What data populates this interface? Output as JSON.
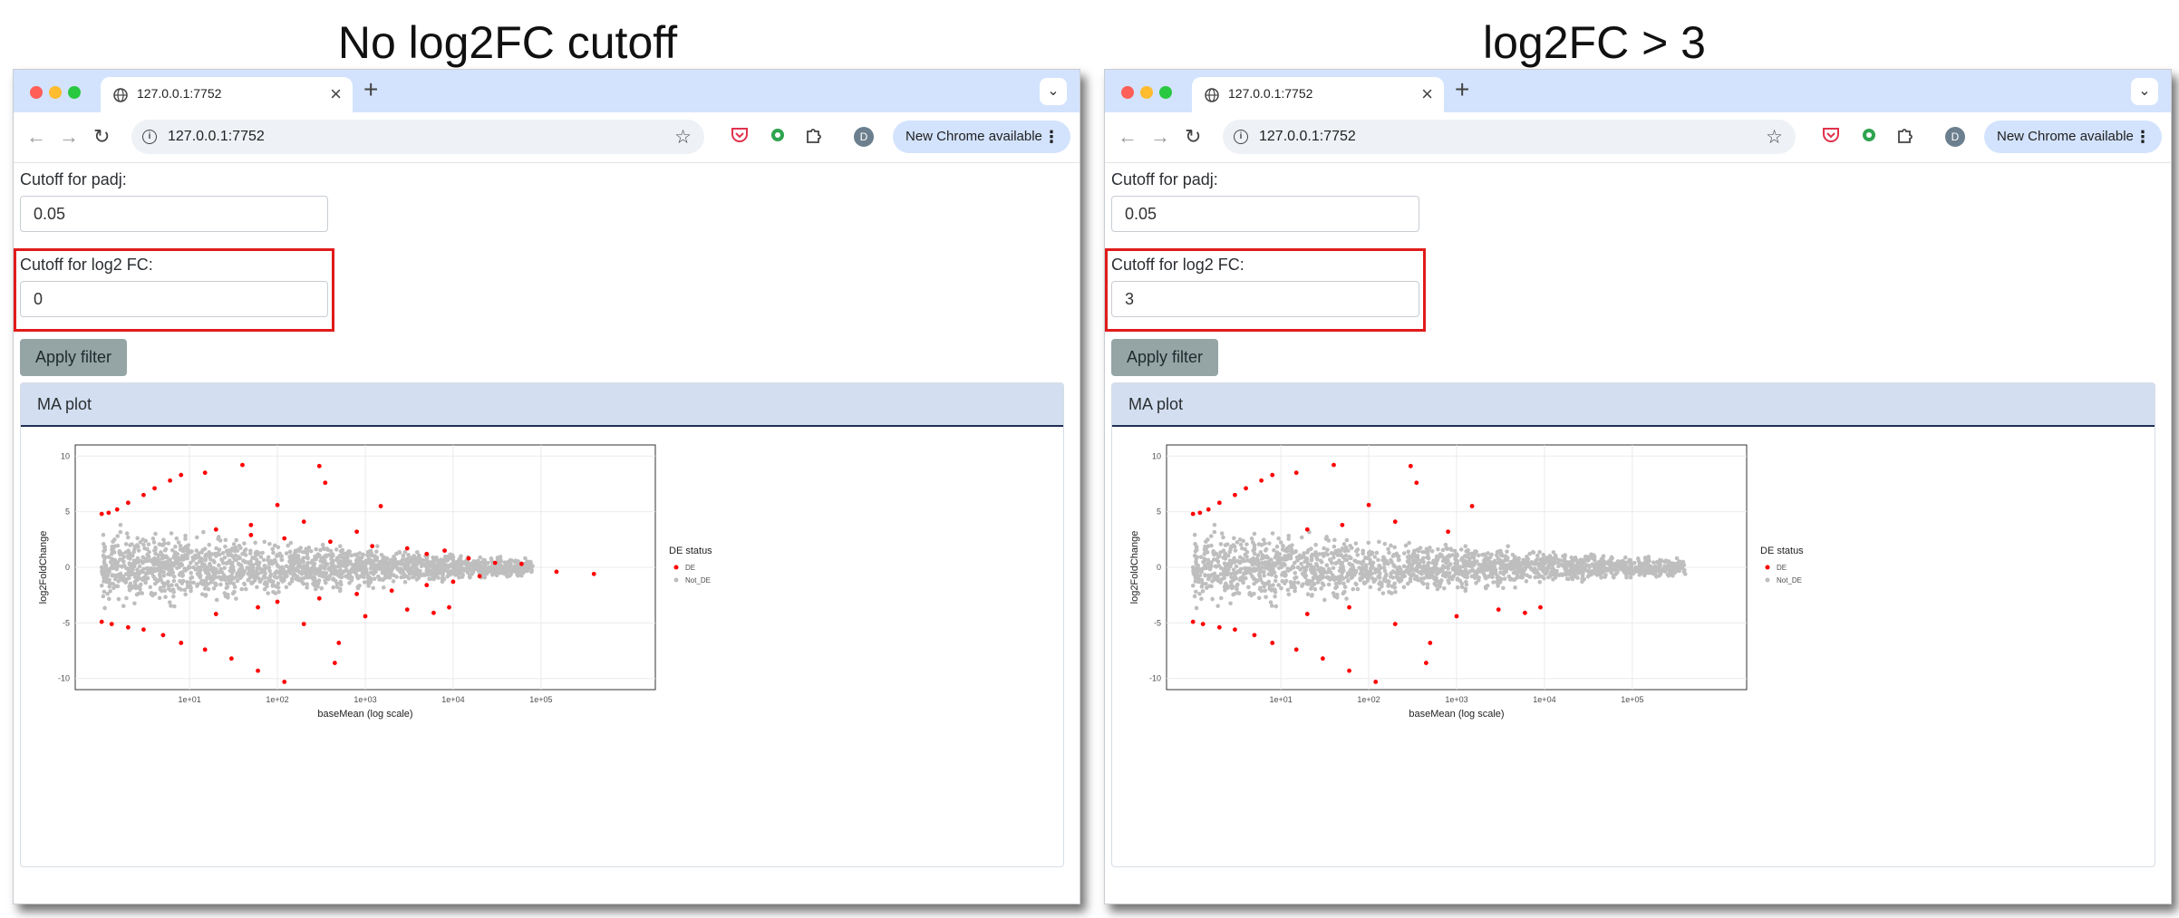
{
  "panels": [
    {
      "heading": "No log2FC cutoff",
      "tab_title": "127.0.0.1:7752",
      "url": "127.0.0.1:7752",
      "update_chip": "New Chrome available",
      "avatar_letter": "D",
      "padj_label": "Cutoff for padj:",
      "padj_value": "0.05",
      "lfc_label": "Cutoff for log2 FC:",
      "lfc_value": "0",
      "apply_label": "Apply filter",
      "card_title": "MA plot"
    },
    {
      "heading": "log2FC > 3",
      "tab_title": "127.0.0.1:7752",
      "url": "127.0.0.1:7752",
      "update_chip": "New Chrome available",
      "avatar_letter": "D",
      "padj_label": "Cutoff for padj:",
      "padj_value": "0.05",
      "lfc_label": "Cutoff for log2 FC:",
      "lfc_value": "3",
      "apply_label": "Apply filter",
      "card_title": "MA plot"
    }
  ],
  "colors": {
    "de": "#ff0000",
    "not_de": "#bebebe",
    "highlight_box": "#e11b1b",
    "tabbar": "#d3e3fd",
    "card_header": "#d3dff0",
    "apply_button": "#95a5a6"
  },
  "icons": [
    "back-arrow-icon",
    "forward-arrow-icon",
    "reload-icon",
    "info-icon",
    "star-icon",
    "pocket-icon",
    "extension-green-icon",
    "puzzle-icon",
    "globe-icon",
    "close-icon",
    "plus-icon",
    "chevron-down-icon",
    "more-vert-icon"
  ],
  "chart_data": [
    {
      "type": "scatter",
      "title": "",
      "xlabel": "baseMean (log scale)",
      "ylabel": "log2FoldChange",
      "x_scale": "log10",
      "xlim": [
        0.5,
        2000000
      ],
      "ylim": [
        -11,
        11
      ],
      "x_ticks": [
        "1e+01",
        "1e+02",
        "1e+03",
        "1e+04",
        "1e+05"
      ],
      "y_ticks": [
        "10",
        "5",
        "0",
        "-5",
        "-10"
      ],
      "grid": true,
      "legend_title": "DE status",
      "legend_position": "right",
      "series": [
        {
          "name": "DE",
          "color": "#ff0000",
          "points": [
            [
              1,
              4.8
            ],
            [
              1.2,
              4.9
            ],
            [
              1.5,
              5.2
            ],
            [
              2,
              5.8
            ],
            [
              3,
              6.5
            ],
            [
              4,
              7.1
            ],
            [
              6,
              7.8
            ],
            [
              8,
              8.3
            ],
            [
              15,
              8.5
            ],
            [
              40,
              9.2
            ],
            [
              300,
              9.1
            ],
            [
              350,
              7.6
            ],
            [
              100,
              5.6
            ],
            [
              1500,
              5.5
            ],
            [
              20,
              3.4
            ],
            [
              50,
              3.8
            ],
            [
              200,
              4.1
            ],
            [
              800,
              3.2
            ],
            [
              1,
              -4.9
            ],
            [
              1.3,
              -5.1
            ],
            [
              2,
              -5.4
            ],
            [
              3,
              -5.6
            ],
            [
              5,
              -6.1
            ],
            [
              8,
              -6.8
            ],
            [
              15,
              -7.4
            ],
            [
              30,
              -8.2
            ],
            [
              60,
              -9.3
            ],
            [
              120,
              -10.3
            ],
            [
              450,
              -8.6
            ],
            [
              500,
              -6.8
            ],
            [
              200,
              -5.1
            ],
            [
              1000,
              -4.4
            ],
            [
              3000,
              -3.8
            ],
            [
              6000,
              -4.1
            ],
            [
              9000,
              -3.6
            ],
            [
              20,
              -4.2
            ],
            [
              60,
              -3.6
            ],
            [
              5000,
              1.2
            ],
            [
              8000,
              1.5
            ],
            [
              15000,
              0.8
            ],
            [
              30000,
              0.4
            ],
            [
              60000,
              0.3
            ],
            [
              150000,
              -0.4
            ],
            [
              400000,
              -0.6
            ],
            [
              20000,
              -0.8
            ],
            [
              10000,
              -1.3
            ],
            [
              5000,
              -1.6
            ],
            [
              2000,
              -2.1
            ],
            [
              800,
              -2.4
            ],
            [
              300,
              -2.8
            ],
            [
              100,
              -3.1
            ],
            [
              50,
              2.9
            ],
            [
              120,
              2.6
            ],
            [
              400,
              2.3
            ],
            [
              1200,
              1.9
            ],
            [
              3000,
              1.7
            ]
          ]
        },
        {
          "name": "Not_DE",
          "color": "#bebebe",
          "points": [
            [
              1,
              0
            ],
            [
              2,
              1
            ],
            [
              3,
              -1
            ],
            [
              5,
              2
            ],
            [
              8,
              -2
            ],
            [
              12,
              1.5
            ],
            [
              20,
              -1.5
            ],
            [
              40,
              1.2
            ],
            [
              80,
              -1
            ],
            [
              150,
              0.8
            ],
            [
              300,
              -0.7
            ],
            [
              600,
              0.6
            ],
            [
              1200,
              -0.5
            ],
            [
              2500,
              0.4
            ],
            [
              5000,
              -0.3
            ],
            [
              10000,
              0.3
            ],
            [
              20000,
              -0.2
            ],
            [
              40000,
              0.2
            ],
            [
              80000,
              0.1
            ]
          ]
        }
      ]
    },
    {
      "type": "scatter",
      "title": "",
      "xlabel": "baseMean (log scale)",
      "ylabel": "log2FoldChange",
      "x_scale": "log10",
      "xlim": [
        0.5,
        2000000
      ],
      "ylim": [
        -11,
        11
      ],
      "x_ticks": [
        "1e+01",
        "1e+02",
        "1e+03",
        "1e+04",
        "1e+05"
      ],
      "y_ticks": [
        "10",
        "5",
        "0",
        "-5",
        "-10"
      ],
      "grid": true,
      "legend_title": "DE status",
      "legend_position": "right",
      "series": [
        {
          "name": "DE",
          "color": "#ff0000",
          "points": [
            [
              1,
              4.8
            ],
            [
              1.2,
              4.9
            ],
            [
              1.5,
              5.2
            ],
            [
              2,
              5.8
            ],
            [
              3,
              6.5
            ],
            [
              4,
              7.1
            ],
            [
              6,
              7.8
            ],
            [
              8,
              8.3
            ],
            [
              15,
              8.5
            ],
            [
              40,
              9.2
            ],
            [
              300,
              9.1
            ],
            [
              350,
              7.6
            ],
            [
              100,
              5.6
            ],
            [
              1500,
              5.5
            ],
            [
              20,
              3.4
            ],
            [
              50,
              3.8
            ],
            [
              200,
              4.1
            ],
            [
              800,
              3.2
            ],
            [
              1,
              -4.9
            ],
            [
              1.3,
              -5.1
            ],
            [
              2,
              -5.4
            ],
            [
              3,
              -5.6
            ],
            [
              5,
              -6.1
            ],
            [
              8,
              -6.8
            ],
            [
              15,
              -7.4
            ],
            [
              30,
              -8.2
            ],
            [
              60,
              -9.3
            ],
            [
              120,
              -10.3
            ],
            [
              450,
              -8.6
            ],
            [
              500,
              -6.8
            ],
            [
              200,
              -5.1
            ],
            [
              1000,
              -4.4
            ],
            [
              3000,
              -3.8
            ],
            [
              6000,
              -4.1
            ],
            [
              9000,
              -3.6
            ],
            [
              20,
              -4.2
            ],
            [
              60,
              -3.6
            ]
          ]
        },
        {
          "name": "Not_DE",
          "color": "#bebebe",
          "points": [
            [
              1,
              0
            ],
            [
              2,
              1
            ],
            [
              3,
              -1
            ],
            [
              5,
              2
            ],
            [
              8,
              -2
            ],
            [
              12,
              1.5
            ],
            [
              20,
              -1.5
            ],
            [
              40,
              1.2
            ],
            [
              80,
              -1
            ],
            [
              150,
              0.8
            ],
            [
              300,
              -0.7
            ],
            [
              600,
              0.6
            ],
            [
              1200,
              -0.5
            ],
            [
              2500,
              0.4
            ],
            [
              5000,
              -0.3
            ],
            [
              10000,
              0.3
            ],
            [
              20000,
              -0.2
            ],
            [
              40000,
              0.2
            ],
            [
              80000,
              0.1
            ],
            [
              150000,
              -0.4
            ],
            [
              400000,
              -0.6
            ]
          ]
        }
      ]
    }
  ]
}
